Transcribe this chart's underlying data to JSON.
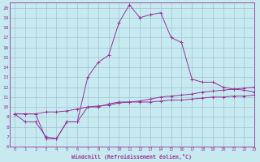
{
  "xlabel": "Windchill (Refroidissement éolien,°C)",
  "xlim": [
    -0.5,
    23
  ],
  "ylim": [
    6,
    20.5
  ],
  "xticks": [
    0,
    1,
    2,
    3,
    4,
    5,
    6,
    7,
    8,
    9,
    10,
    11,
    12,
    13,
    14,
    15,
    16,
    17,
    18,
    19,
    20,
    21,
    22,
    23
  ],
  "yticks": [
    6,
    7,
    8,
    9,
    10,
    11,
    12,
    13,
    14,
    15,
    16,
    17,
    18,
    19,
    20
  ],
  "background_color": "#c6eaf0",
  "line_color": "#993399",
  "grid_color": "#99bbcc",
  "line1_x": [
    0,
    1,
    2,
    3,
    4,
    5,
    6,
    7,
    8,
    9,
    10,
    11,
    12,
    13,
    14,
    15,
    16,
    17,
    18,
    19,
    20,
    21,
    22,
    23
  ],
  "line1_y": [
    9.3,
    8.5,
    8.5,
    7.0,
    6.8,
    8.5,
    8.5,
    10.0,
    10.0,
    10.3,
    10.5,
    10.5,
    10.5,
    10.5,
    10.6,
    10.7,
    10.7,
    10.8,
    10.9,
    11.0,
    11.0,
    11.1,
    11.1,
    11.2
  ],
  "line2_x": [
    0,
    1,
    2,
    3,
    4,
    5,
    6,
    7,
    8,
    9,
    10,
    11,
    12,
    13,
    14,
    15,
    16,
    17,
    18,
    19,
    20,
    21,
    22,
    23
  ],
  "line2_y": [
    9.3,
    9.3,
    9.3,
    9.5,
    9.5,
    9.6,
    9.8,
    10.0,
    10.1,
    10.2,
    10.4,
    10.5,
    10.6,
    10.8,
    11.0,
    11.1,
    11.2,
    11.3,
    11.5,
    11.6,
    11.7,
    11.8,
    11.9,
    12.0
  ],
  "line3_x": [
    0,
    1,
    2,
    3,
    4,
    5,
    6,
    7,
    8,
    9,
    10,
    11,
    12,
    13,
    14,
    15,
    16,
    17,
    18,
    19,
    20,
    21,
    22,
    23
  ],
  "line3_y": [
    9.3,
    9.3,
    9.3,
    6.8,
    6.8,
    8.5,
    8.5,
    13.0,
    14.5,
    15.2,
    18.5,
    20.3,
    19.0,
    19.3,
    19.5,
    17.0,
    16.5,
    12.8,
    12.5,
    12.5,
    12.0,
    11.8,
    11.7,
    11.5
  ]
}
